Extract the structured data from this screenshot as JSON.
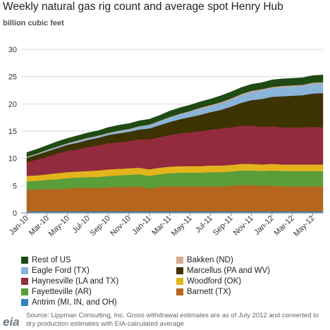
{
  "title": "Weekly natural gas rig count and average spot Henry Hub",
  "subtitle": "billion cubic feet",
  "source": "Source: Lippman Consulting, Inc. Gross withdrawal estimates are as of July 2012 and converted to dry production estimates with EIA-calculated average",
  "logo": "eia",
  "chart_data": {
    "type": "area",
    "stacked": true,
    "grid": true,
    "ylim": [
      0,
      30
    ],
    "yticks": [
      "0",
      "5",
      "10",
      "15",
      "20",
      "25",
      "30"
    ],
    "xticks": [
      "Jan-10",
      "Mar-10",
      "May-10",
      "Jul-10",
      "Sep-10",
      "Nov-10",
      "Jan-11",
      "Mar-11",
      "May-11",
      "Jul-11",
      "Sep-11",
      "Nov-11",
      "Jan-12",
      "Mar-12",
      "May-12"
    ],
    "x": [
      "Jan-10",
      "Feb-10",
      "Mar-10",
      "Apr-10",
      "May-10",
      "Jun-10",
      "Jul-10",
      "Aug-10",
      "Sep-10",
      "Oct-10",
      "Nov-10",
      "Dec-10",
      "Jan-11",
      "Feb-11",
      "Mar-11",
      "Apr-11",
      "May-11",
      "Jun-11",
      "Jul-11",
      "Aug-11",
      "Sep-11",
      "Oct-11",
      "Nov-11",
      "Dec-11",
      "Jan-12",
      "Feb-12",
      "Mar-12",
      "Apr-12",
      "May-12",
      "Jun-12"
    ],
    "legend_position": "bottom",
    "series": [
      {
        "name": "Antrim (MI, IN, and OH)",
        "color": "#2e86c1",
        "values": [
          0.3,
          0.3,
          0.3,
          0.3,
          0.3,
          0.3,
          0.3,
          0.3,
          0.3,
          0.3,
          0.3,
          0.3,
          0.3,
          0.3,
          0.3,
          0.3,
          0.3,
          0.3,
          0.3,
          0.3,
          0.3,
          0.3,
          0.3,
          0.3,
          0.3,
          0.3,
          0.3,
          0.3,
          0.3,
          0.3
        ]
      },
      {
        "name": "Barnett (TX)",
        "color": "#b5651d",
        "values": [
          4.0,
          4.0,
          4.1,
          4.1,
          4.2,
          4.3,
          4.3,
          4.3,
          4.4,
          4.5,
          4.5,
          4.6,
          4.2,
          4.5,
          4.6,
          4.6,
          4.6,
          4.6,
          4.6,
          4.6,
          4.7,
          4.8,
          4.8,
          4.7,
          4.7,
          4.6,
          4.6,
          4.6,
          4.6,
          4.6
        ]
      },
      {
        "name": "Fayetteville (AR)",
        "color": "#5a9e3a",
        "values": [
          1.5,
          1.6,
          1.7,
          1.8,
          1.9,
          1.9,
          2.0,
          2.0,
          2.1,
          2.1,
          2.2,
          2.2,
          2.3,
          2.3,
          2.4,
          2.5,
          2.5,
          2.5,
          2.6,
          2.6,
          2.6,
          2.7,
          2.7,
          2.7,
          2.8,
          2.8,
          2.8,
          2.8,
          2.8,
          2.8
        ]
      },
      {
        "name": "Woodford (OK)",
        "color": "#e4b41d",
        "values": [
          1.0,
          1.0,
          1.0,
          1.1,
          1.1,
          1.1,
          1.1,
          1.2,
          1.2,
          1.2,
          1.2,
          1.2,
          1.2,
          1.2,
          1.2,
          1.2,
          1.2,
          1.2,
          1.2,
          1.2,
          1.2,
          1.2,
          1.2,
          1.2,
          1.2,
          1.2,
          1.2,
          1.2,
          1.2,
          1.2
        ]
      },
      {
        "name": "Haynesville (LA and TX)",
        "color": "#922b3e",
        "values": [
          2.5,
          2.9,
          3.2,
          3.6,
          3.9,
          4.1,
          4.4,
          4.6,
          4.8,
          4.9,
          5.0,
          5.2,
          5.5,
          5.6,
          5.8,
          6.0,
          6.2,
          6.4,
          6.6,
          6.8,
          6.9,
          7.0,
          7.0,
          6.9,
          6.9,
          6.8,
          6.8,
          6.8,
          6.9,
          6.8
        ]
      },
      {
        "name": "Marcellus (PA and WV)",
        "color": "#3d3300",
        "values": [
          0.8,
          0.9,
          1.0,
          1.0,
          1.1,
          1.2,
          1.3,
          1.4,
          1.5,
          1.6,
          1.7,
          1.8,
          2.0,
          2.2,
          2.4,
          2.6,
          2.8,
          3.0,
          3.2,
          3.4,
          3.8,
          4.2,
          4.7,
          5.1,
          5.4,
          5.7,
          5.8,
          5.9,
          6.1,
          6.3
        ]
      },
      {
        "name": "Eagle Ford (TX)",
        "color": "#8ab4d8",
        "values": [
          0.1,
          0.1,
          0.2,
          0.2,
          0.2,
          0.3,
          0.3,
          0.3,
          0.3,
          0.4,
          0.4,
          0.5,
          0.6,
          0.7,
          0.8,
          0.9,
          1.0,
          1.1,
          1.1,
          1.2,
          1.3,
          1.4,
          1.5,
          1.6,
          1.6,
          1.7,
          1.7,
          1.7,
          1.8,
          1.8
        ]
      },
      {
        "name": "Bakken (ND)",
        "color": "#d8a890",
        "values": [
          0.1,
          0.1,
          0.1,
          0.1,
          0.1,
          0.1,
          0.1,
          0.1,
          0.1,
          0.1,
          0.1,
          0.1,
          0.1,
          0.1,
          0.1,
          0.1,
          0.1,
          0.2,
          0.2,
          0.2,
          0.2,
          0.2,
          0.2,
          0.2,
          0.2,
          0.2,
          0.2,
          0.2,
          0.2,
          0.2
        ]
      },
      {
        "name": "Rest of US",
        "color": "#1f4a14",
        "values": [
          0.8,
          0.8,
          0.8,
          0.9,
          0.9,
          0.9,
          0.9,
          0.9,
          1.0,
          1.0,
          1.0,
          1.0,
          1.0,
          1.0,
          1.1,
          1.1,
          1.1,
          1.1,
          1.1,
          1.2,
          1.2,
          1.2,
          1.2,
          1.2,
          1.3,
          1.3,
          1.3,
          1.3,
          1.3,
          1.3
        ]
      }
    ]
  },
  "legend_rows": [
    [
      "Rest of US",
      "Bakken (ND)"
    ],
    [
      "Eagle Ford (TX)",
      "Marcellus (PA and WV)"
    ],
    [
      "Haynesville (LA and TX)",
      "Woodford (OK)"
    ],
    [
      "Fayetteville (AR)",
      "Barnett (TX)"
    ],
    [
      "Antrim (MI, IN, and OH)"
    ]
  ]
}
